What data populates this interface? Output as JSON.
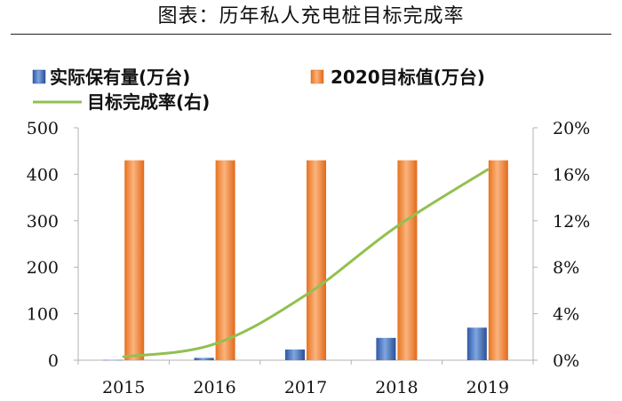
{
  "title": "图表：历年私人充电桩目标完成率",
  "chart_data": {
    "type": "bar",
    "categories": [
      "2015",
      "2016",
      "2017",
      "2018",
      "2019"
    ],
    "series": [
      {
        "name": "实际保有量(万台)",
        "kind": "bar",
        "axis": "left",
        "color": "#4472c4",
        "values": [
          0.5,
          5,
          23,
          48,
          70
        ]
      },
      {
        "name": "2020目标值(万台)",
        "kind": "bar",
        "axis": "left",
        "color": "#ed7d31",
        "values": [
          430,
          430,
          430,
          430,
          430
        ]
      },
      {
        "name": "目标完成率(右)",
        "kind": "line",
        "axis": "right",
        "color": "#92c050",
        "values": [
          0.3,
          1.4,
          5.6,
          11.5,
          16.4
        ]
      }
    ],
    "y_left": {
      "min": 0,
      "max": 500,
      "ticks": [
        "0",
        "100",
        "200",
        "300",
        "400",
        "500"
      ]
    },
    "y_right": {
      "min": 0,
      "max": 20,
      "ticks": [
        "0%",
        "4%",
        "8%",
        "12%",
        "16%",
        "20%"
      ]
    }
  }
}
